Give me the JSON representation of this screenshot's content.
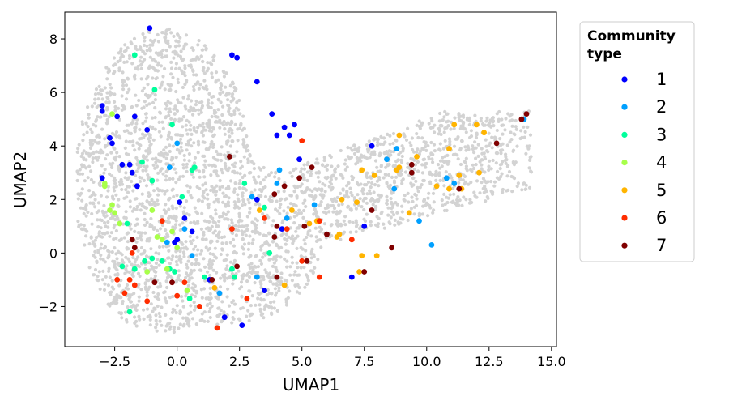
{
  "chart_data": {
    "type": "scatter",
    "xlabel": "UMAP1",
    "ylabel": "UMAP2",
    "xlim": [
      -4.5,
      15.2
    ],
    "ylim": [
      -3.5,
      9.0
    ],
    "xticks": [
      "−2.5",
      "0.0",
      "2.5",
      "5.0",
      "7.5",
      "10.0",
      "12.5",
      "15.0"
    ],
    "xtick_values": [
      -2.5,
      0.0,
      2.5,
      5.0,
      7.5,
      10.0,
      12.5,
      15.0
    ],
    "yticks": [
      "−2",
      "0",
      "2",
      "4",
      "6",
      "8"
    ],
    "ytick_values": [
      -2,
      0,
      2,
      4,
      6,
      8
    ],
    "grid": false,
    "legend": {
      "title_line1": "Community",
      "title_line2": "type",
      "placement": "outside-right"
    },
    "background_color": "#d3d3d3",
    "series": [
      {
        "name": "1",
        "color": "#0000ff",
        "points": [
          [
            -1.1,
            8.4
          ],
          [
            2.2,
            7.4
          ],
          [
            2.4,
            7.3
          ],
          [
            3.2,
            6.4
          ],
          [
            -3.0,
            5.5
          ],
          [
            -3.0,
            5.3
          ],
          [
            -2.4,
            5.1
          ],
          [
            -1.7,
            5.1
          ],
          [
            -1.2,
            4.6
          ],
          [
            -2.7,
            4.3
          ],
          [
            -2.6,
            4.1
          ],
          [
            3.8,
            5.2
          ],
          [
            4.3,
            4.7
          ],
          [
            4.7,
            4.8
          ],
          [
            4.0,
            4.4
          ],
          [
            4.5,
            4.4
          ],
          [
            4.9,
            3.5
          ],
          [
            -2.2,
            3.3
          ],
          [
            -1.9,
            3.3
          ],
          [
            -1.8,
            3.0
          ],
          [
            -1.6,
            2.5
          ],
          [
            -3.0,
            2.8
          ],
          [
            0.1,
            1.9
          ],
          [
            3.2,
            2.0
          ],
          [
            0.3,
            1.3
          ],
          [
            0.0,
            0.5
          ],
          [
            -0.1,
            0.4
          ],
          [
            0.6,
            0.8
          ],
          [
            3.5,
            -1.4
          ],
          [
            1.9,
            -2.4
          ],
          [
            2.6,
            -2.7
          ],
          [
            7.5,
            1.0
          ],
          [
            7.0,
            -0.9
          ],
          [
            7.8,
            4.0
          ],
          [
            4.2,
            0.9
          ],
          [
            1.3,
            -1.0
          ]
        ]
      },
      {
        "name": "2",
        "color": "#00a0ff",
        "points": [
          [
            3.0,
            2.1
          ],
          [
            4.1,
            3.1
          ],
          [
            4.0,
            2.6
          ],
          [
            5.5,
            1.8
          ],
          [
            8.4,
            3.5
          ],
          [
            8.8,
            3.9
          ],
          [
            8.7,
            2.4
          ],
          [
            9.7,
            1.2
          ],
          [
            10.2,
            0.3
          ],
          [
            10.8,
            2.8
          ],
          [
            11.1,
            2.6
          ],
          [
            13.9,
            5.0
          ],
          [
            0.0,
            4.1
          ],
          [
            -0.3,
            3.2
          ],
          [
            0.6,
            -0.1
          ],
          [
            1.7,
            -1.5
          ],
          [
            3.2,
            -0.9
          ],
          [
            4.4,
            1.3
          ],
          [
            0.3,
            0.9
          ],
          [
            -0.4,
            0.4
          ]
        ]
      },
      {
        "name": "3",
        "color": "#00ff9c",
        "points": [
          [
            -1.7,
            7.4
          ],
          [
            -0.9,
            6.1
          ],
          [
            -0.2,
            4.8
          ],
          [
            -1.4,
            3.4
          ],
          [
            -1.0,
            2.7
          ],
          [
            0.6,
            3.1
          ],
          [
            0.7,
            3.2
          ],
          [
            2.7,
            2.6
          ],
          [
            3.5,
            1.7
          ],
          [
            0.2,
            2.1
          ],
          [
            -2.0,
            1.1
          ],
          [
            -1.3,
            -0.3
          ],
          [
            -1.0,
            -0.2
          ],
          [
            -0.3,
            -0.6
          ],
          [
            0.5,
            -1.7
          ],
          [
            2.2,
            -0.6
          ],
          [
            2.3,
            -0.9
          ],
          [
            3.7,
            0.0
          ],
          [
            -1.7,
            -0.6
          ],
          [
            -0.1,
            -0.7
          ],
          [
            -1.9,
            -2.2
          ],
          [
            -2.2,
            -0.5
          ],
          [
            -0.6,
            -0.3
          ],
          [
            1.1,
            -0.9
          ]
        ]
      },
      {
        "name": "4",
        "color": "#a8ff4a",
        "points": [
          [
            -2.6,
            5.2
          ],
          [
            -2.9,
            2.5
          ],
          [
            -2.6,
            1.8
          ],
          [
            -2.5,
            1.5
          ],
          [
            -2.7,
            1.6
          ],
          [
            -2.3,
            1.1
          ],
          [
            -1.0,
            1.6
          ],
          [
            -0.6,
            0.5
          ],
          [
            -0.2,
            0.8
          ],
          [
            0.0,
            0.2
          ],
          [
            -0.4,
            -0.6
          ],
          [
            -1.2,
            -0.7
          ],
          [
            -0.8,
            0.6
          ],
          [
            0.4,
            -1.4
          ],
          [
            -2.9,
            2.6
          ]
        ]
      },
      {
        "name": "5",
        "color": "#ffb400",
        "points": [
          [
            3.3,
            1.6
          ],
          [
            4.6,
            1.6
          ],
          [
            5.3,
            1.1
          ],
          [
            5.6,
            1.2
          ],
          [
            6.6,
            2.0
          ],
          [
            7.2,
            1.9
          ],
          [
            6.5,
            0.7
          ],
          [
            6.4,
            0.6
          ],
          [
            7.3,
            -0.7
          ],
          [
            7.4,
            -0.1
          ],
          [
            8.0,
            -0.1
          ],
          [
            7.4,
            3.1
          ],
          [
            7.9,
            2.9
          ],
          [
            8.9,
            3.2
          ],
          [
            8.8,
            3.1
          ],
          [
            8.9,
            4.4
          ],
          [
            9.6,
            3.6
          ],
          [
            9.3,
            1.5
          ],
          [
            10.4,
            2.5
          ],
          [
            10.9,
            3.9
          ],
          [
            11.1,
            4.8
          ],
          [
            11.4,
            2.4
          ],
          [
            12.0,
            4.8
          ],
          [
            12.3,
            4.5
          ],
          [
            12.1,
            3.0
          ],
          [
            10.9,
            2.4
          ],
          [
            11.3,
            2.9
          ],
          [
            4.3,
            -1.2
          ],
          [
            1.5,
            -1.3
          ]
        ]
      },
      {
        "name": "6",
        "color": "#ff2d00",
        "points": [
          [
            5.0,
            4.2
          ],
          [
            3.5,
            1.3
          ],
          [
            4.4,
            0.9
          ],
          [
            5.0,
            -0.3
          ],
          [
            5.7,
            -0.9
          ],
          [
            5.7,
            1.2
          ],
          [
            7.0,
            0.5
          ],
          [
            2.2,
            0.9
          ],
          [
            2.8,
            -1.7
          ],
          [
            1.6,
            -2.8
          ],
          [
            0.0,
            -1.6
          ],
          [
            0.9,
            -2.0
          ],
          [
            0.3,
            -1.1
          ],
          [
            -0.6,
            1.2
          ],
          [
            -1.8,
            0.0
          ],
          [
            -2.4,
            -1.0
          ],
          [
            -1.9,
            -1.0
          ],
          [
            -2.1,
            -1.5
          ],
          [
            -1.2,
            -1.8
          ],
          [
            -1.7,
            -1.2
          ]
        ]
      },
      {
        "name": "7",
        "color": "#800000",
        "points": [
          [
            14.0,
            5.2
          ],
          [
            13.8,
            5.0
          ],
          [
            12.8,
            4.1
          ],
          [
            11.3,
            2.4
          ],
          [
            9.4,
            3.3
          ],
          [
            9.4,
            3.0
          ],
          [
            7.8,
            1.6
          ],
          [
            8.6,
            0.2
          ],
          [
            6.0,
            0.7
          ],
          [
            7.5,
            -0.7
          ],
          [
            5.2,
            -0.3
          ],
          [
            5.1,
            1.0
          ],
          [
            5.4,
            3.2
          ],
          [
            4.9,
            2.8
          ],
          [
            4.3,
            2.5
          ],
          [
            3.9,
            2.2
          ],
          [
            4.0,
            1.0
          ],
          [
            3.9,
            0.6
          ],
          [
            2.1,
            3.6
          ],
          [
            2.4,
            -0.5
          ],
          [
            4.0,
            -0.9
          ],
          [
            1.4,
            -1.0
          ],
          [
            -1.8,
            0.5
          ],
          [
            -1.7,
            0.2
          ],
          [
            -0.2,
            -1.1
          ],
          [
            -0.9,
            -1.1
          ]
        ]
      }
    ]
  }
}
